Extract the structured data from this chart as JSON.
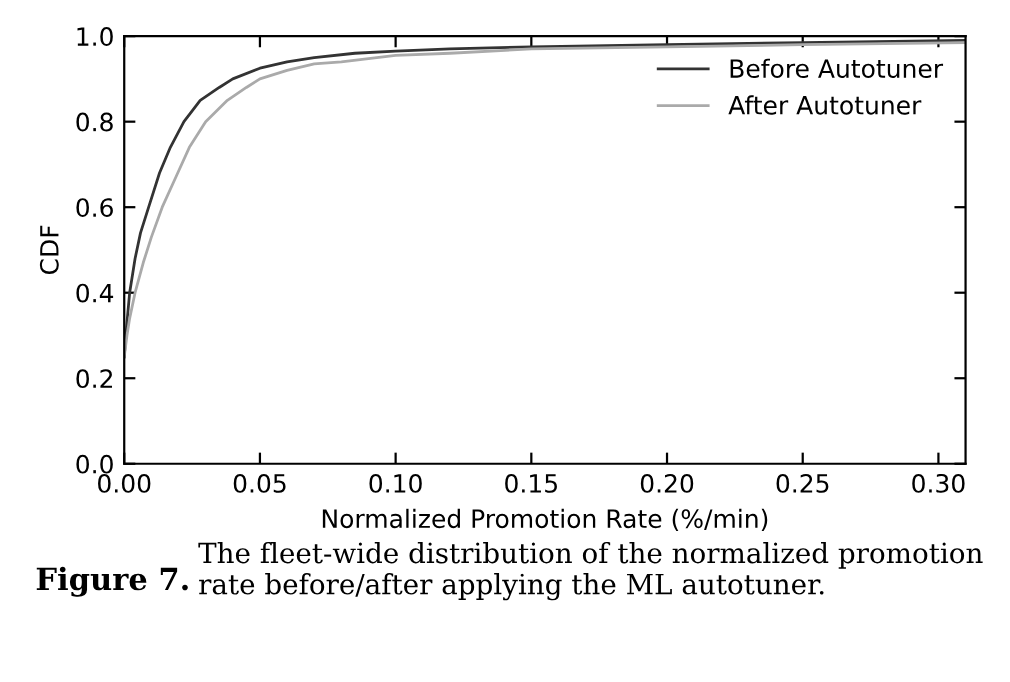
{
  "chart_data": {
    "type": "line",
    "xlabel": "Normalized Promotion Rate (%/min)",
    "ylabel": "CDF",
    "xlim": [
      0,
      0.31
    ],
    "xticks": [
      {
        "value": 0,
        "label": "0.00"
      },
      0.05,
      {
        "value": 0.1,
        "label": "0.10"
      },
      0.15,
      {
        "value": 0.2,
        "label": "0.20"
      },
      0.25,
      {
        "value": 0.3,
        "label": "0.30"
      }
    ],
    "ylim": [
      0,
      1
    ],
    "yticks": [
      {
        "value": 0,
        "label": "0.0"
      },
      0.2,
      0.4,
      0.6,
      0.8,
      {
        "value": 1,
        "label": "1.0"
      }
    ],
    "grid": false,
    "legend": "top right",
    "marker": "none",
    "line_style": "solid",
    "series": [
      {
        "name": "Before Autotuner",
        "color": "#333333",
        "x": [
          0,
          0.001,
          0.002,
          0.004,
          0.006,
          0.009,
          0.013,
          0.017,
          0.022,
          0.028,
          0.035,
          0.04,
          0.05,
          0.06,
          0.07,
          0.085,
          0.1,
          0.12,
          0.15,
          0.2,
          0.25,
          0.31
        ],
        "values": [
          0.25,
          0.33,
          0.4,
          0.48,
          0.54,
          0.6,
          0.68,
          0.74,
          0.8,
          0.85,
          0.88,
          0.9,
          0.925,
          0.94,
          0.95,
          0.96,
          0.965,
          0.97,
          0.975,
          0.98,
          0.985,
          0.99
        ]
      },
      {
        "name": "After Autotuner",
        "color": "#aaaaaa",
        "x": [
          0,
          0.001,
          0.002,
          0.004,
          0.007,
          0.01,
          0.014,
          0.019,
          0.024,
          0.03,
          0.038,
          0.045,
          0.05,
          0.06,
          0.07,
          0.08,
          0.1,
          0.12,
          0.15,
          0.2,
          0.25,
          0.31
        ],
        "values": [
          0.25,
          0.3,
          0.34,
          0.4,
          0.47,
          0.53,
          0.6,
          0.67,
          0.74,
          0.8,
          0.85,
          0.88,
          0.9,
          0.92,
          0.935,
          0.94,
          0.955,
          0.96,
          0.97,
          0.975,
          0.98,
          0.985
        ]
      }
    ],
    "annotations": [
      "Figure 7.",
      "The fleet-wide distribution of the normalized promotion rate before/after applying the ML autotuner."
    ]
  }
}
